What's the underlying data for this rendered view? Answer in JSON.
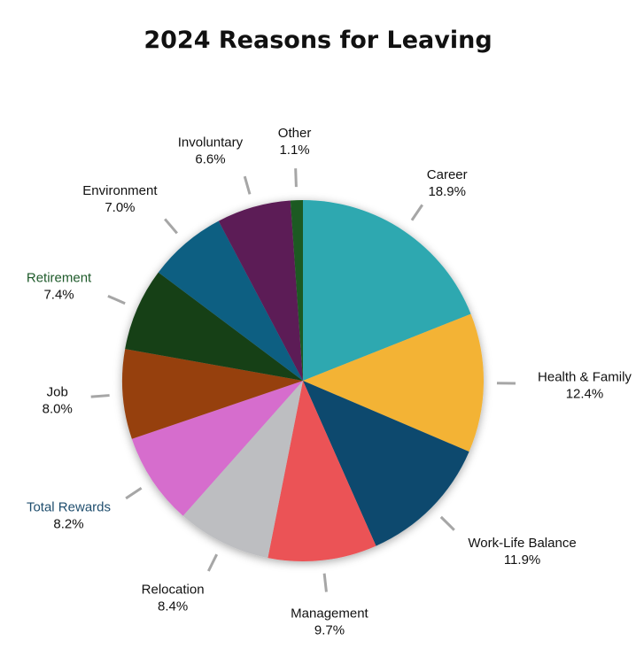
{
  "chart_data": {
    "type": "pie",
    "title": "2024 Reasons for Leaving",
    "slices": [
      {
        "label": "Career",
        "value": 18.9,
        "display": "18.9%",
        "color": "#2FA8B0",
        "label_color": "#111111"
      },
      {
        "label": "Health & Family",
        "value": 12.4,
        "display": "12.4%",
        "color": "#F3B335",
        "label_color": "#111111"
      },
      {
        "label": "Work-Life Balance",
        "value": 11.9,
        "display": "11.9%",
        "color": "#0F4A6E",
        "label_color": "#111111"
      },
      {
        "label": "Management",
        "value": 9.7,
        "display": "9.7%",
        "color": "#EB5256",
        "label_color": "#111111"
      },
      {
        "label": "Relocation",
        "value": 8.4,
        "display": "8.4%",
        "color": "#BDBEC1",
        "label_color": "#111111"
      },
      {
        "label": "Total Rewards",
        "value": 8.2,
        "display": "8.2%",
        "color": "#D66DCD",
        "label_color": "#1F4E6E"
      },
      {
        "label": "Job",
        "value": 8.0,
        "display": "8.0%",
        "color": "#964011",
        "label_color": "#111111"
      },
      {
        "label": "Retirement",
        "value": 7.4,
        "display": "7.4%",
        "color": "#133F17",
        "label_color": "#1E5A2A"
      },
      {
        "label": "Environment",
        "value": 7.0,
        "display": "7.0%",
        "color": "#0C5E82",
        "label_color": "#111111"
      },
      {
        "label": "Involuntary",
        "value": 6.6,
        "display": "6.6%",
        "color": "#5C1A56",
        "label_color": "#111111"
      },
      {
        "label": "Other",
        "value": 1.1,
        "display": "1.1%",
        "color": "#1E5A22",
        "label_color": "#111111"
      }
    ],
    "leader_line_color": "#A6A6A6"
  }
}
